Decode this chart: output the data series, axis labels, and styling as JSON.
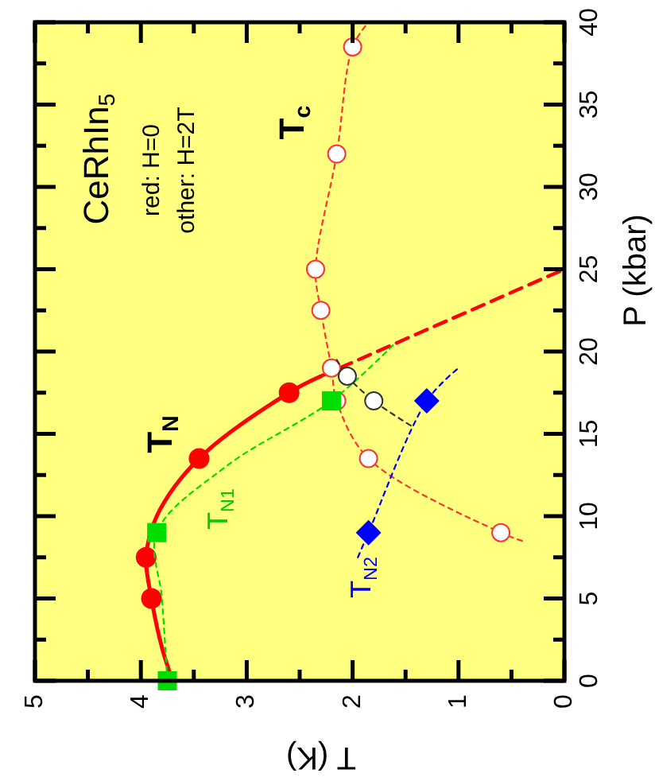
{
  "chart_data": {
    "type": "line",
    "xlabel": "T  (K)",
    "ylabel": "P  (kbar)",
    "xlim": [
      5,
      0
    ],
    "ylim": [
      0,
      40
    ],
    "xticks": [
      5,
      {
        "value": 4.5,
        "label": null
      },
      4,
      {
        "value": 3.5,
        "label": null
      },
      3,
      {
        "value": 2.5,
        "label": null
      },
      2,
      {
        "value": 1.5,
        "label": null
      },
      1,
      {
        "value": 0.5,
        "label": null
      },
      0
    ],
    "yticks": [
      0,
      {
        "value": 2.5,
        "label": null
      },
      5,
      {
        "value": 7.5,
        "label": null
      },
      10,
      {
        "value": 12.5,
        "label": null
      },
      15,
      {
        "value": 17.5,
        "label": null
      },
      20,
      {
        "value": 22.5,
        "label": null
      },
      25,
      {
        "value": 27.5,
        "label": null
      },
      30,
      {
        "value": 32.5,
        "label": null
      },
      35,
      {
        "value": 37.5,
        "label": null
      },
      40
    ],
    "grid": false,
    "annotations": [
      "CeRhIn$_{5}$",
      "red: H=0",
      "other: H=2T",
      "T$_{c}$",
      "T$_{N}$",
      "T$_{N1}$",
      "T$_{N2}$"
    ],
    "series": [
      {
        "type": "line",
        "color": "#ff0000",
        "line_style": "solid",
        "marker": "none",
        "x": [
          3.7,
          3.8,
          3.9,
          3.95,
          3.85,
          3.45,
          2.6,
          2.3
        ],
        "values": [
          0,
          2,
          5,
          7.5,
          10,
          13.5,
          17.5,
          18.5
        ]
      },
      {
        "type": "line",
        "color": "#ff0000",
        "line_style": "dashed",
        "marker": "none",
        "x": [
          2.3,
          0
        ],
        "values": [
          18.5,
          25
        ]
      },
      {
        "type": "scatter",
        "color": "#ff0000",
        "marker": "circle",
        "x": [
          3.9,
          3.95,
          3.45,
          2.6
        ],
        "values": [
          5,
          7.5,
          13.5,
          17.5
        ]
      },
      {
        "type": "line",
        "color": "#00dd00",
        "line_style": "dotted",
        "marker": "none",
        "x": [
          3.75,
          3.8,
          3.85,
          3.2,
          2.2,
          1.6
        ],
        "values": [
          0,
          5,
          9,
          13,
          17,
          20.5
        ]
      },
      {
        "type": "line",
        "color": "#ff3333",
        "line_style": "dotted",
        "marker": "none",
        "x": [
          0.4,
          0.6,
          1.85,
          2.15,
          2.2,
          2.3,
          2.35,
          2.15,
          2.0,
          1.85
        ],
        "values": [
          8.5,
          9,
          13.5,
          17,
          19,
          22.5,
          25,
          32,
          38.5,
          40
        ]
      },
      {
        "type": "scatter",
        "color": "#ff3333",
        "marker": "circle",
        "x": [
          0.6,
          1.85,
          2.15,
          2.2,
          2.3,
          2.35,
          2.15,
          2.0
        ],
        "values": [
          9,
          13.5,
          17,
          19,
          22.5,
          25,
          32,
          38.5
        ]
      },
      {
        "type": "scatter",
        "color": "#00dd00",
        "marker": "square",
        "x": [
          3.75,
          3.85,
          2.2
        ],
        "values": [
          0,
          9,
          17
        ]
      },
      {
        "type": "line",
        "color": "#333333",
        "line_style": "dotted",
        "marker": "none",
        "x": [
          2.15,
          2.05,
          1.8,
          1.45
        ],
        "values": [
          19.5,
          18.5,
          17,
          15.5
        ]
      },
      {
        "type": "scatter",
        "color": "#333333",
        "marker": "circle",
        "x": [
          2.05,
          1.8
        ],
        "values": [
          18.5,
          17
        ]
      },
      {
        "type": "line",
        "color": "#0000ff",
        "line_style": "dotted",
        "marker": "none",
        "x": [
          1.95,
          1.85,
          1.3,
          1.0
        ],
        "values": [
          7.5,
          9,
          17,
          19
        ]
      },
      {
        "type": "scatter",
        "color": "#0000ff",
        "marker": "diamond",
        "x": [
          1.85,
          1.3
        ],
        "values": [
          9,
          17
        ]
      }
    ]
  }
}
